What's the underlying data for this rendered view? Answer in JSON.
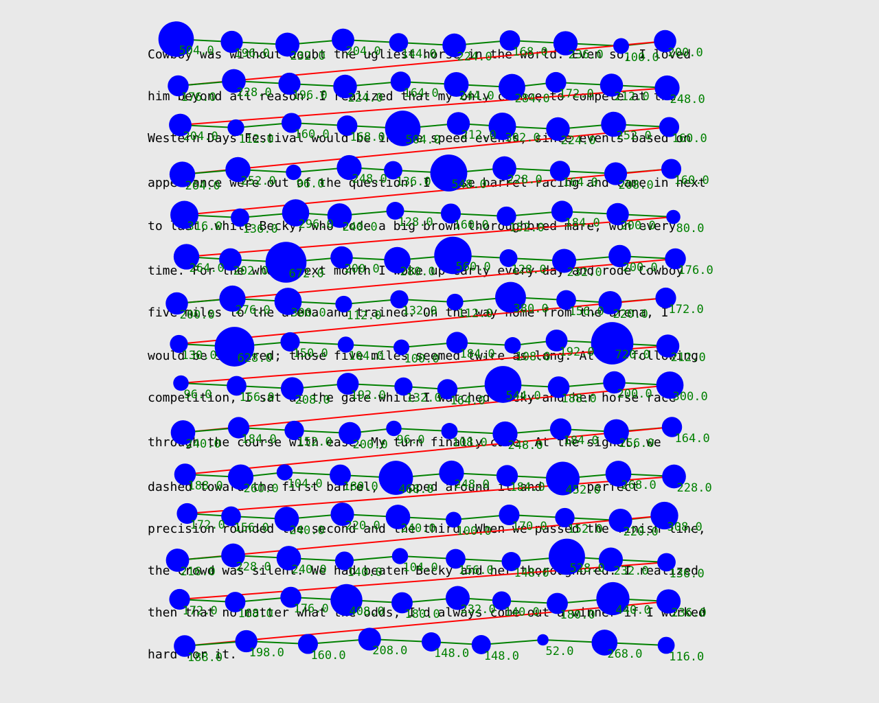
{
  "passage": {
    "lines": [
      "Cowboy was without doubt the ugliest horse in the world. Even so, I loved",
      "him beyond all reason. I realized that my only chance to compete at the",
      "Western Days Festival would be in the speed events, since events based on",
      "appearance were out of the question. I chose barrel racing and came in next",
      "to last, while Becky, who rode a big brown thoroughbred mare, won every",
      "time. For the whole next month I woke up early every day and rode Cowboy",
      "five miles to the arena and trained. On the way home from the arena, I",
      "would be so tired; those five miles seemed twice as long. At the following",
      "competition, I sat at the gate while I watched Becky and her horse race",
      "through the course with ease. My turn finally came. At the signal, we",
      "dashed toward the first barrel, whipped around it and with perfect",
      "precision rounded the second and the third. When we passed the finish line,",
      "the crowd was silent. We had beaten Becky and her thoroughbred. I realized",
      "then that no matter what the odds, I'd always come out a winner if I worked",
      "hard for it."
    ]
  },
  "overlay": {
    "colors": {
      "fixation": "#0000ff",
      "saccade_forward": "#008000",
      "saccade_regression": "#ff0000",
      "duration_label": "#008000"
    },
    "fixations": [
      {
        "d": 504.0
      },
      {
        "d": 196.0
      },
      {
        "d": 232.0
      },
      {
        "d": 204.0
      },
      {
        "d": 144.0
      },
      {
        "d": 224.0
      },
      {
        "d": 168.0
      },
      {
        "d": 236.0
      },
      {
        "d": 100.0
      },
      {
        "d": 200.0
      },
      {
        "d": 176.0
      },
      {
        "d": 228.0
      },
      {
        "d": 196.0
      },
      {
        "d": 224.0
      },
      {
        "d": 164.0
      },
      {
        "d": 244.0
      },
      {
        "d": 284.0
      },
      {
        "d": 172.0
      },
      {
        "d": 212.0
      },
      {
        "d": 248.0
      },
      {
        "d": 204.0
      },
      {
        "d": 112.0
      },
      {
        "d": 160.0
      },
      {
        "d": 168.0
      },
      {
        "d": 504.0
      },
      {
        "d": 212.0
      },
      {
        "d": 302.0
      },
      {
        "d": 224.0
      },
      {
        "d": 252.0
      },
      {
        "d": 160.0
      },
      {
        "d": 264.0
      },
      {
        "d": 252.0
      },
      {
        "d": 96.0
      },
      {
        "d": 248.0
      },
      {
        "d": 136.0
      },
      {
        "d": 548.0
      },
      {
        "d": 228.0
      },
      {
        "d": 164.0
      },
      {
        "d": 208.0
      },
      {
        "d": 160.0
      },
      {
        "d": 316.0
      },
      {
        "d": 136.0
      },
      {
        "d": 296.0
      },
      {
        "d": 240.0
      },
      {
        "d": 128.0
      },
      {
        "d": 160.0
      },
      {
        "d": 152.0
      },
      {
        "d": 184.0
      },
      {
        "d": 200.0
      },
      {
        "d": 80.0
      },
      {
        "d": 264.0
      },
      {
        "d": 202.0
      },
      {
        "d": 672.0
      },
      {
        "d": 200.0
      },
      {
        "d": 280.0
      },
      {
        "d": 560.0
      },
      {
        "d": 128.0
      },
      {
        "d": 232.0
      },
      {
        "d": 200.0
      },
      {
        "d": 176.0
      },
      {
        "d": 200.0
      },
      {
        "d": 276.0
      },
      {
        "d": 300.0
      },
      {
        "d": 112.0
      },
      {
        "d": 132.0
      },
      {
        "d": 112.0
      },
      {
        "d": 380.0
      },
      {
        "d": 156.0
      },
      {
        "d": 220.0
      },
      {
        "d": 172.0
      },
      {
        "d": 130.0
      },
      {
        "d": 628.0
      },
      {
        "d": 150.0
      },
      {
        "d": 104.0
      },
      {
        "d": 100.0
      },
      {
        "d": 184.0
      },
      {
        "d": 108.0
      },
      {
        "d": 192.0
      },
      {
        "d": 720.0
      },
      {
        "d": 212.0
      },
      {
        "d": 96.0
      },
      {
        "d": 156.0
      },
      {
        "d": 208.0
      },
      {
        "d": 192.0
      },
      {
        "d": 132.0
      },
      {
        "d": 164.0
      },
      {
        "d": 544.0
      },
      {
        "d": 188.0
      },
      {
        "d": 200.0
      },
      {
        "d": 300.0
      },
      {
        "d": 240.0
      },
      {
        "d": 184.0
      },
      {
        "d": 152.0
      },
      {
        "d": 200.0
      },
      {
        "d": 96.0
      },
      {
        "d": 108.0
      },
      {
        "d": 248.0
      },
      {
        "d": 184.0
      },
      {
        "d": 256.0
      },
      {
        "d": 164.0
      },
      {
        "d": 188.0
      },
      {
        "d": 260.0
      },
      {
        "d": 104.0
      },
      {
        "d": 180.0
      },
      {
        "d": 468.0
      },
      {
        "d": 248.0
      },
      {
        "d": 184.0
      },
      {
        "d": 452.0
      },
      {
        "d": 268.0
      },
      {
        "d": 228.0
      },
      {
        "d": 172.0
      },
      {
        "d": 156.0
      },
      {
        "d": 240.0
      },
      {
        "d": 220.0
      },
      {
        "d": 240.0
      },
      {
        "d": 100.0
      },
      {
        "d": 170.0
      },
      {
        "d": 152.0
      },
      {
        "d": 220.0
      },
      {
        "d": 308.0
      },
      {
        "d": 216.0
      },
      {
        "d": 228.0
      },
      {
        "d": 240.0
      },
      {
        "d": 140.0
      },
      {
        "d": 104.0
      },
      {
        "d": 156.0
      },
      {
        "d": 148.0
      },
      {
        "d": 528.0
      },
      {
        "d": 232.0
      },
      {
        "d": 136.0
      },
      {
        "d": 172.0
      },
      {
        "d": 168.0
      },
      {
        "d": 176.0
      },
      {
        "d": 408.0
      },
      {
        "d": 180.0
      },
      {
        "d": 232.0
      },
      {
        "d": 140.0
      },
      {
        "d": 180.0
      },
      {
        "d": 440.0
      },
      {
        "d": 236.0
      },
      {
        "d": 188.0
      },
      {
        "d": 198.0
      },
      {
        "d": 160.0
      },
      {
        "d": 208.0
      },
      {
        "d": 148.0
      },
      {
        "d": 148.0
      },
      {
        "d": 52.0
      },
      {
        "d": 268.0
      },
      {
        "d": 116.0
      }
    ]
  }
}
